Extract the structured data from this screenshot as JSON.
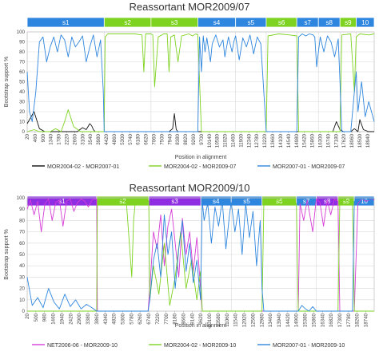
{
  "chart_data": [
    {
      "type": "line",
      "title": "Reassortant MOR2009/07",
      "xlabel": "Position in alignment",
      "ylabel": "Bootstrap support %",
      "ylim": [
        0,
        100
      ],
      "yticks": [
        "0",
        "10",
        "20",
        "30",
        "40",
        "50",
        "60",
        "70",
        "80",
        "90",
        "100"
      ],
      "xticks": [
        "20",
        "460",
        "900",
        "1340",
        "1780",
        "2220",
        "2660",
        "3100",
        "3540",
        "3980",
        "4420",
        "4860",
        "5300",
        "5740",
        "6180",
        "6620",
        "7060",
        "7500",
        "7940",
        "8380",
        "8820",
        "9260",
        "9700",
        "10140",
        "10580",
        "11020",
        "11460",
        "11900",
        "12340",
        "12780",
        "13220",
        "13660",
        "14100",
        "14540",
        "14980",
        "15420",
        "15860",
        "16300",
        "16740",
        "17180",
        "17620",
        "18060",
        "18500",
        "18940"
      ],
      "xlim": [
        20,
        19300
      ],
      "grid": true,
      "legend_position": "bottom",
      "segments": [
        {
          "label": "s1",
          "start": 20,
          "end": 4300,
          "color": "#2e86de"
        },
        {
          "label": "s2",
          "start": 4300,
          "end": 6900,
          "color": "#7ed321"
        },
        {
          "label": "s3",
          "start": 6900,
          "end": 9500,
          "color": "#7ed321"
        },
        {
          "label": "s4",
          "start": 9500,
          "end": 11600,
          "color": "#2e86de"
        },
        {
          "label": "s5",
          "start": 11600,
          "end": 13300,
          "color": "#2e86de"
        },
        {
          "label": "s6",
          "start": 13300,
          "end": 15000,
          "color": "#7ed321"
        },
        {
          "label": "s7",
          "start": 15000,
          "end": 16200,
          "color": "#2e86de"
        },
        {
          "label": "s8",
          "start": 16200,
          "end": 17400,
          "color": "#2e86de"
        },
        {
          "label": "s9",
          "start": 17400,
          "end": 18300,
          "color": "#7ed321"
        },
        {
          "label": "10",
          "start": 18300,
          "end": 19300,
          "color": "#2e86de"
        }
      ],
      "series": [
        {
          "name": "MOR2004-02 - MOR2007-01",
          "color": "#111111",
          "x": [
            20,
            400,
            700,
            1000,
            1300,
            1600,
            2000,
            2400,
            2800,
            3100,
            3300,
            3500,
            3600,
            3700,
            3800,
            3900,
            4000,
            4200,
            4300,
            6000,
            7000,
            7500,
            7900,
            8100,
            8200,
            8300,
            8400,
            9000,
            9500,
            10000,
            11000,
            12000,
            12500,
            13000,
            14000,
            15000,
            15300,
            15500,
            16000,
            16500,
            17000,
            17200,
            17400,
            17600,
            18000,
            18200,
            18400,
            18500,
            18700,
            19000,
            19300
          ],
          "values": [
            8,
            20,
            3,
            0,
            0,
            0,
            0,
            0,
            0,
            4,
            2,
            8,
            6,
            2,
            0,
            0,
            0,
            0,
            0,
            0,
            0,
            0,
            0,
            3,
            18,
            2,
            0,
            0,
            0,
            0,
            0,
            0,
            0,
            0,
            0,
            0,
            0,
            0,
            0,
            0,
            0,
            10,
            2,
            0,
            0,
            3,
            0,
            12,
            2,
            0,
            0
          ]
        },
        {
          "name": "MOR2004-02 - MOR2009-07",
          "color": "#7ed321",
          "x": [
            20,
            400,
            700,
            1000,
            1300,
            1600,
            1900,
            2100,
            2300,
            2600,
            3000,
            3500,
            4000,
            4300,
            4350,
            4500,
            5000,
            5500,
            6000,
            6400,
            6500,
            6600,
            6800,
            6900,
            7000,
            7100,
            7300,
            7600,
            7800,
            7900,
            8000,
            8200,
            8400,
            8600,
            8800,
            9000,
            9200,
            9400,
            9500,
            9700,
            10000,
            10500,
            11000,
            11500,
            11600,
            13000,
            13300,
            13400,
            14000,
            14600,
            15000,
            15100,
            16000,
            17000,
            17400,
            17500,
            18000,
            18200,
            18300,
            18500,
            19000,
            19300
          ],
          "values": [
            0,
            2,
            0,
            0,
            0,
            3,
            0,
            10,
            22,
            5,
            0,
            0,
            0,
            0,
            95,
            98,
            98,
            98,
            98,
            97,
            60,
            98,
            98,
            98,
            97,
            45,
            95,
            98,
            98,
            60,
            95,
            97,
            70,
            96,
            97,
            98,
            96,
            98,
            97,
            0,
            0,
            0,
            0,
            0,
            0,
            0,
            0,
            96,
            98,
            97,
            96,
            0,
            0,
            0,
            0,
            97,
            98,
            40,
            95,
            98,
            97,
            98
          ]
        },
        {
          "name": "MOR2007-01 - MOR2009-07",
          "color": "#2e86de",
          "x": [
            20,
            150,
            300,
            500,
            700,
            900,
            1100,
            1300,
            1500,
            1700,
            1900,
            2100,
            2300,
            2500,
            2700,
            2900,
            3100,
            3300,
            3500,
            3700,
            3900,
            4100,
            4250,
            4300,
            5000,
            6000,
            7000,
            8000,
            9000,
            9500,
            9600,
            9700,
            9800,
            9900,
            10000,
            10200,
            10300,
            10500,
            10700,
            10900,
            11000,
            11200,
            11400,
            11500,
            11600,
            11800,
            12000,
            12200,
            12400,
            12600,
            12800,
            13000,
            13200,
            13300,
            13400,
            14000,
            14900,
            15000,
            15100,
            15300,
            15500,
            15700,
            15900,
            16000,
            16100,
            16300,
            16500,
            16700,
            16900,
            17100,
            17300,
            17400,
            17500,
            18000,
            18300,
            18400,
            18600,
            18800,
            19000,
            19300
          ],
          "values": [
            60,
            20,
            10,
            40,
            90,
            95,
            70,
            85,
            95,
            80,
            97,
            92,
            75,
            95,
            85,
            90,
            96,
            70,
            85,
            97,
            75,
            92,
            40,
            0,
            0,
            0,
            0,
            0,
            0,
            0,
            95,
            60,
            96,
            80,
            94,
            70,
            88,
            97,
            85,
            92,
            75,
            95,
            80,
            90,
            96,
            72,
            94,
            85,
            97,
            78,
            95,
            88,
            30,
            0,
            0,
            0,
            0,
            0,
            95,
            98,
            96,
            98,
            97,
            95,
            65,
            95,
            80,
            96,
            90,
            75,
            93,
            50,
            0,
            0,
            60,
            20,
            50,
            15,
            30,
            10
          ]
        }
      ]
    },
    {
      "type": "line",
      "title": "Reassortant MOR2009/10",
      "xlabel": "Position in alignment",
      "ylabel": "Bootstrap support %",
      "ylim": [
        0,
        100
      ],
      "yticks": [
        "0",
        "10",
        "20",
        "30",
        "40",
        "50",
        "60",
        "70",
        "80",
        "90",
        "100"
      ],
      "xticks": [
        "20",
        "500",
        "980",
        "1460",
        "1940",
        "2420",
        "2900",
        "3380",
        "3860",
        "4340",
        "4820",
        "5300",
        "5780",
        "6260",
        "6740",
        "7220",
        "7700",
        "8180",
        "8660",
        "9140",
        "9620",
        "10100",
        "10580",
        "11060",
        "11540",
        "12020",
        "12500",
        "12980",
        "13460",
        "13940",
        "14420",
        "14900",
        "15380",
        "15860",
        "16340",
        "16820",
        "17300",
        "17780",
        "18260",
        "18740"
      ],
      "xlim": [
        20,
        19200
      ],
      "grid": true,
      "legend_position": "bottom",
      "segments": [
        {
          "label": "s1",
          "start": 20,
          "end": 3860,
          "color": "#8e2de2"
        },
        {
          "label": "s2",
          "start": 3860,
          "end": 6740,
          "color": "#7ed321"
        },
        {
          "label": "s3",
          "start": 6740,
          "end": 9620,
          "color": "#8e2de2"
        },
        {
          "label": "s4",
          "start": 9620,
          "end": 11300,
          "color": "#2e86de"
        },
        {
          "label": "s5",
          "start": 11300,
          "end": 13000,
          "color": "#2e86de"
        },
        {
          "label": "s6",
          "start": 13000,
          "end": 14900,
          "color": "#7ed321"
        },
        {
          "label": "s7",
          "start": 14900,
          "end": 16000,
          "color": "#2e86de"
        },
        {
          "label": "s8",
          "start": 16000,
          "end": 17200,
          "color": "#8e2de2"
        },
        {
          "label": "s9",
          "start": 17200,
          "end": 18100,
          "color": "#7ed321"
        },
        {
          "label": "10",
          "start": 18100,
          "end": 19200,
          "color": "#2e86de"
        }
      ],
      "series": [
        {
          "name": "NET2006-06 - MOR2009-10",
          "color": "#d63cd6",
          "x": [
            20,
            200,
            400,
            600,
            800,
            1000,
            1200,
            1400,
            1600,
            1800,
            2000,
            2200,
            2400,
            2600,
            2800,
            3000,
            3200,
            3400,
            3600,
            3800,
            3860,
            3900,
            5000,
            6000,
            6700,
            6800,
            7000,
            7200,
            7400,
            7600,
            7800,
            8000,
            8200,
            8400,
            8600,
            8800,
            9000,
            9200,
            9400,
            9600,
            9700,
            10000,
            11000,
            11300,
            11500,
            12000,
            13000,
            14000,
            15000,
            15100,
            15300,
            15500,
            15800,
            16000,
            16200,
            16400,
            16600,
            16800,
            17000,
            17200,
            17300,
            18000,
            18100,
            18300,
            18500,
            18800,
            19000,
            19200
          ],
          "values": [
            90,
            98,
            85,
            97,
            70,
            95,
            99,
            80,
            96,
            98,
            75,
            97,
            99,
            88,
            96,
            99,
            97,
            92,
            98,
            99,
            99,
            0,
            0,
            0,
            0,
            20,
            70,
            55,
            85,
            40,
            75,
            90,
            60,
            30,
            82,
            50,
            70,
            35,
            65,
            20,
            0,
            0,
            0,
            0,
            0,
            0,
            0,
            0,
            0,
            95,
            80,
            98,
            70,
            99,
            96,
            75,
            98,
            85,
            99,
            97,
            0,
            0,
            0,
            95,
            99,
            97,
            99,
            98
          ]
        },
        {
          "name": "MOR2004-02 - MOR2009-10",
          "color": "#7ed321",
          "x": [
            20,
            3800,
            3860,
            3900,
            4000,
            4500,
            5000,
            5500,
            5800,
            5900,
            6000,
            6200,
            6500,
            6700,
            6740,
            6800,
            7000,
            7300,
            7600,
            7900,
            8200,
            8500,
            8800,
            9100,
            9400,
            9600,
            9700,
            10000,
            11000,
            12000,
            13000,
            13100,
            13500,
            14000,
            14500,
            14900,
            15000,
            16000,
            17000,
            17200,
            17300,
            17600,
            18000,
            18100,
            18300,
            19200
          ],
          "values": [
            0,
            0,
            0,
            97,
            98,
            98,
            98,
            97,
            30,
            80,
            97,
            98,
            97,
            98,
            97,
            10,
            40,
            15,
            60,
            5,
            30,
            70,
            20,
            45,
            10,
            35,
            0,
            0,
            0,
            0,
            0,
            96,
            98,
            97,
            98,
            95,
            0,
            0,
            0,
            0,
            97,
            98,
            96,
            0,
            0,
            0
          ]
        },
        {
          "name": "MOR2007-01 - MOR2009-10",
          "color": "#2e86de",
          "x": [
            20,
            300,
            600,
            900,
            1200,
            1500,
            1800,
            2100,
            2400,
            2700,
            3000,
            3300,
            3600,
            3860,
            4000,
            6700,
            6800,
            7000,
            7200,
            7400,
            7600,
            7800,
            8000,
            8200,
            8400,
            8600,
            8800,
            9000,
            9200,
            9400,
            9600,
            9700,
            9800,
            10000,
            10200,
            10400,
            10600,
            10800,
            11000,
            11200,
            11300,
            11500,
            11700,
            11900,
            12100,
            12300,
            12500,
            12700,
            12900,
            13000,
            13100,
            14900,
            15000,
            15200,
            15400,
            15600,
            15800,
            16000,
            16200,
            17200,
            17300,
            18000,
            18100,
            18300,
            18500,
            18800,
            19200
          ],
          "values": [
            30,
            5,
            12,
            3,
            20,
            8,
            2,
            15,
            4,
            10,
            2,
            6,
            3,
            0,
            0,
            0,
            10,
            45,
            60,
            30,
            85,
            50,
            70,
            20,
            55,
            80,
            35,
            60,
            25,
            45,
            10,
            97,
            80,
            95,
            60,
            92,
            75,
            98,
            55,
            85,
            96,
            70,
            90,
            50,
            95,
            65,
            88,
            40,
            80,
            20,
            0,
            0,
            0,
            5,
            2,
            0,
            4,
            0,
            0,
            0,
            0,
            0,
            97,
            98,
            99,
            98,
            99
          ]
        }
      ]
    }
  ]
}
